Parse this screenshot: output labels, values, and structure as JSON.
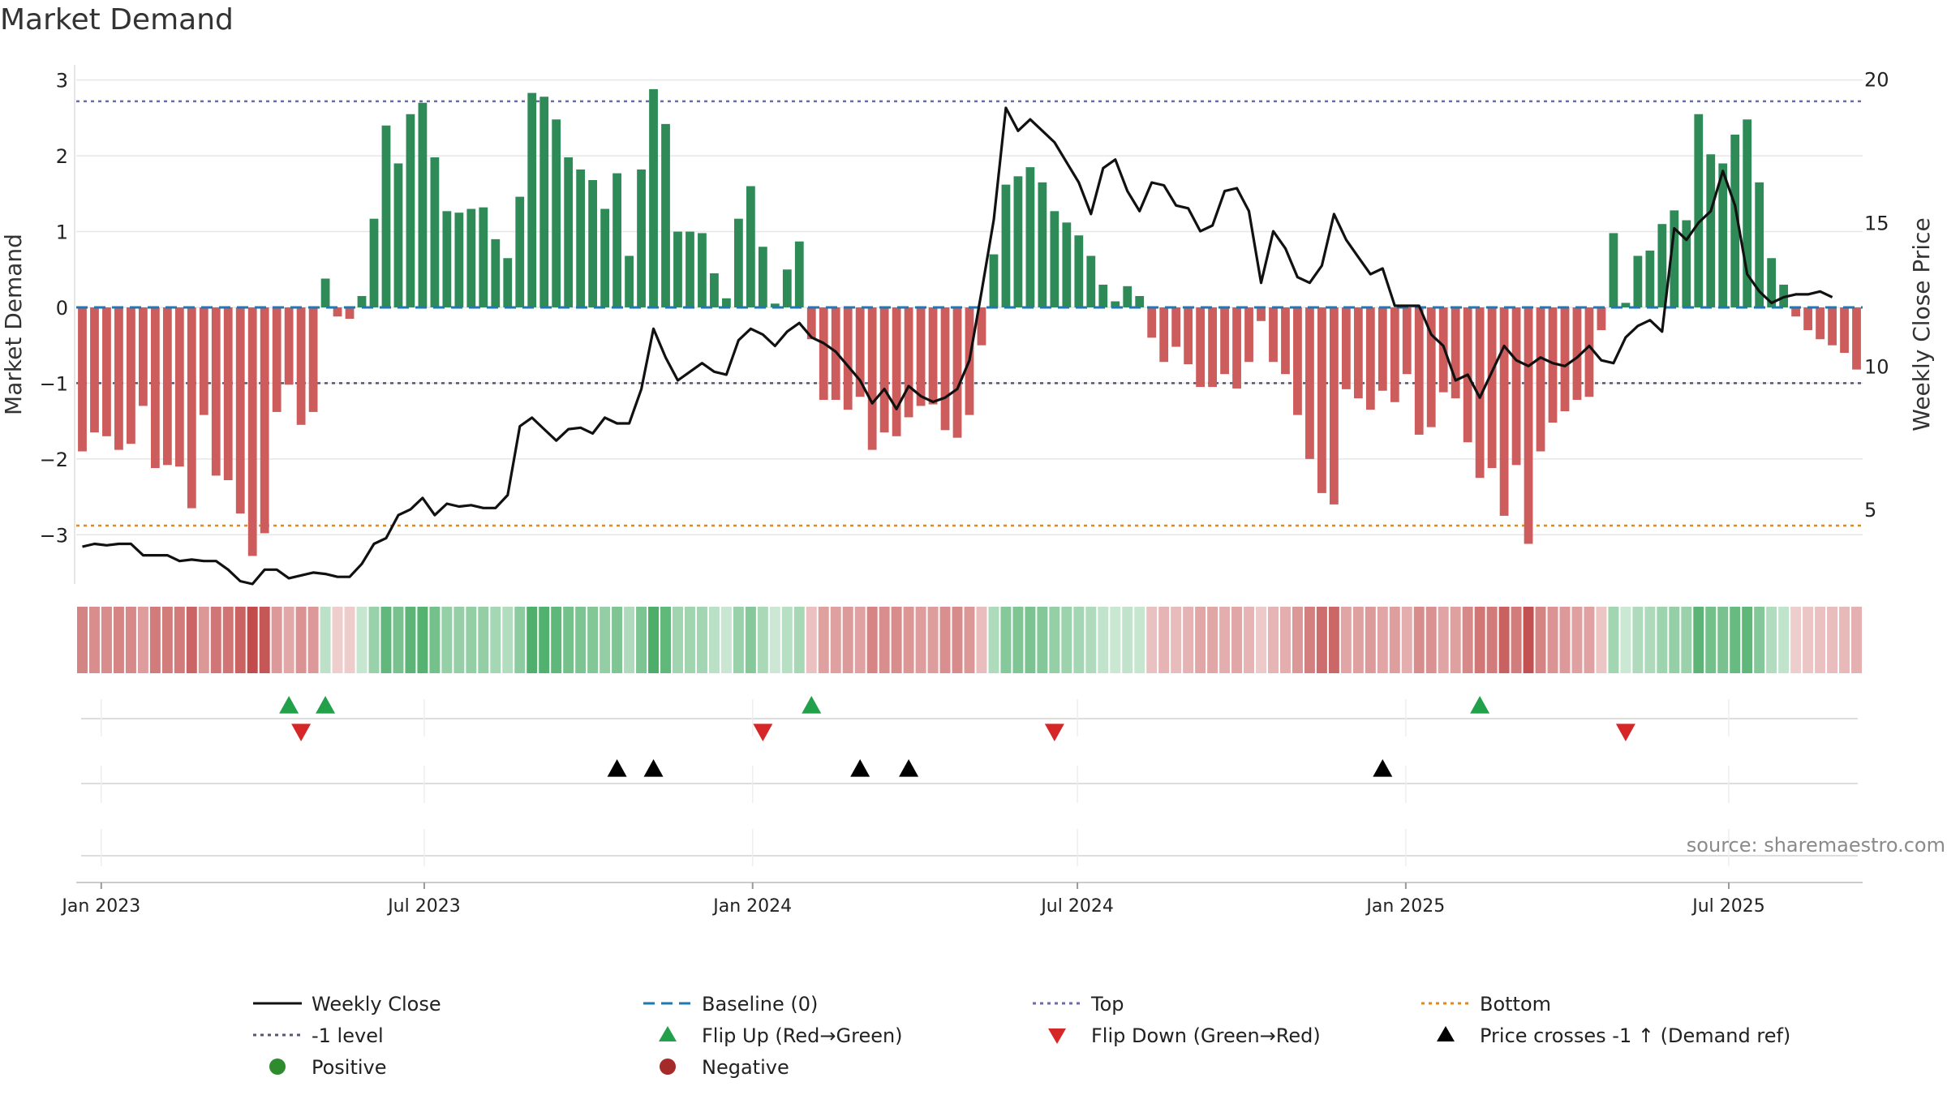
{
  "title": "Market Demand",
  "source_note": "source: sharemaestro.com",
  "colors": {
    "positive": "#2e8b57",
    "negative": "#cd5c5c",
    "price": "#111111",
    "baseline": "#1f77b4",
    "top": "#6a6aaf",
    "minus1": "#555577",
    "bottom": "#e08a1e",
    "flip_up": "#22a04a",
    "flip_down": "#d62728",
    "cross": "#000000",
    "grid": "#e6e6e6"
  },
  "chart_data": {
    "type": "bar",
    "title": "Market Demand",
    "ylabel_left": "Market Demand",
    "ylabel_right": "Weekly Close Price",
    "ylim_left": [
      -3.65,
      3.2
    ],
    "ylim_right": [
      2.4,
      20.5
    ],
    "yticks_left": [
      3,
      2,
      1,
      0,
      -1,
      -2,
      -3
    ],
    "ytick_labels_left": [
      "3",
      "2",
      "1",
      "0",
      "−1",
      "−2",
      "−3"
    ],
    "yticks_right": [
      20,
      15,
      10,
      5
    ],
    "ytick_labels_right": [
      "20",
      "15",
      "10",
      "5"
    ],
    "reference_lines": {
      "top": 2.72,
      "minus1": -1.0,
      "bottom": -2.88,
      "baseline": 0
    },
    "x_start_date": "2022-12-18",
    "x_end_date": "2025-09-14",
    "x_ticks": [
      {
        "label": "Jan 2023",
        "date": "2023-01-01"
      },
      {
        "label": "Jul 2023",
        "date": "2023-07-01"
      },
      {
        "label": "Jan 2024",
        "date": "2024-01-01"
      },
      {
        "label": "Jul 2024",
        "date": "2024-07-01"
      },
      {
        "label": "Jan 2025",
        "date": "2025-01-01"
      },
      {
        "label": "Jul 2025",
        "date": "2025-07-01"
      }
    ],
    "demand": [
      -1.9,
      -1.65,
      -1.7,
      -1.88,
      -1.8,
      -1.3,
      -2.12,
      -2.08,
      -2.1,
      -2.65,
      -1.42,
      -2.22,
      -2.28,
      -2.72,
      -3.28,
      -2.98,
      -1.38,
      -1.02,
      -1.55,
      -1.38,
      0.38,
      -0.12,
      -0.15,
      0.15,
      1.17,
      2.4,
      1.9,
      2.55,
      2.7,
      1.98,
      1.27,
      1.25,
      1.3,
      1.32,
      0.9,
      0.65,
      1.46,
      2.83,
      2.78,
      2.48,
      1.98,
      1.82,
      1.68,
      1.3,
      1.77,
      0.68,
      1.82,
      2.88,
      2.42,
      1.0,
      1.0,
      0.98,
      0.45,
      0.12,
      1.17,
      1.6,
      0.8,
      0.05,
      0.5,
      0.87,
      -0.42,
      -1.22,
      -1.22,
      -1.35,
      -1.18,
      -1.88,
      -1.65,
      -1.7,
      -1.45,
      -1.3,
      -1.28,
      -1.62,
      -1.72,
      -1.42,
      -0.5,
      0.7,
      1.62,
      1.73,
      1.85,
      1.65,
      1.27,
      1.12,
      0.95,
      0.68,
      0.3,
      0.08,
      0.28,
      0.15,
      -0.4,
      -0.72,
      -0.52,
      -0.75,
      -1.05,
      -1.05,
      -0.88,
      -1.07,
      -0.72,
      -0.18,
      -0.72,
      -0.88,
      -1.42,
      -2.0,
      -2.45,
      -2.6,
      -1.08,
      -1.2,
      -1.35,
      -1.1,
      -1.25,
      -0.88,
      -1.68,
      -1.58,
      -1.12,
      -1.2,
      -1.78,
      -2.25,
      -2.12,
      -2.75,
      -2.08,
      -3.12,
      -1.9,
      -1.52,
      -1.37,
      -1.22,
      -1.18,
      -0.3,
      0.98,
      0.06,
      0.68,
      0.75,
      1.1,
      1.28,
      1.15,
      2.55,
      2.02,
      1.9,
      2.28,
      2.48,
      1.65,
      0.65,
      0.3,
      -0.12,
      -0.3,
      -0.42,
      -0.5,
      -0.6,
      -0.82
    ],
    "price_points": [
      [
        0,
        3.7
      ],
      [
        1,
        3.8
      ],
      [
        2,
        3.75
      ],
      [
        3,
        3.8
      ],
      [
        4,
        3.8
      ],
      [
        5,
        3.4
      ],
      [
        6,
        3.4
      ],
      [
        7,
        3.4
      ],
      [
        8,
        3.2
      ],
      [
        9,
        3.25
      ],
      [
        10,
        3.2
      ],
      [
        11,
        3.2
      ],
      [
        12,
        2.9
      ],
      [
        13,
        2.5
      ],
      [
        14,
        2.4
      ],
      [
        15,
        2.9
      ],
      [
        16,
        2.9
      ],
      [
        17,
        2.6
      ],
      [
        18,
        2.7
      ],
      [
        19,
        2.8
      ],
      [
        20,
        2.75
      ],
      [
        21,
        2.65
      ],
      [
        22,
        2.65
      ],
      [
        23,
        3.1
      ],
      [
        24,
        3.8
      ],
      [
        25,
        4.0
      ],
      [
        26,
        4.8
      ],
      [
        27,
        5.0
      ],
      [
        28,
        5.4
      ],
      [
        29,
        4.8
      ],
      [
        30,
        5.2
      ],
      [
        31,
        5.1
      ],
      [
        32,
        5.15
      ],
      [
        33,
        5.05
      ],
      [
        34,
        5.05
      ],
      [
        35,
        5.5
      ],
      [
        36,
        7.9
      ],
      [
        37,
        8.2
      ],
      [
        38,
        7.8
      ],
      [
        39,
        7.4
      ],
      [
        40,
        7.8
      ],
      [
        41,
        7.85
      ],
      [
        42,
        7.65
      ],
      [
        43,
        8.2
      ],
      [
        44,
        8.0
      ],
      [
        45,
        8.0
      ],
      [
        46,
        9.2
      ],
      [
        47,
        11.3
      ],
      [
        48,
        10.3
      ],
      [
        49,
        9.5
      ],
      [
        50,
        9.8
      ],
      [
        51,
        10.1
      ],
      [
        52,
        9.8
      ],
      [
        53,
        9.7
      ],
      [
        54,
        10.9
      ],
      [
        55,
        11.3
      ],
      [
        56,
        11.1
      ],
      [
        57,
        10.7
      ],
      [
        58,
        11.2
      ],
      [
        59,
        11.5
      ],
      [
        60,
        11.0
      ],
      [
        61,
        10.8
      ],
      [
        62,
        10.5
      ],
      [
        63,
        10.0
      ],
      [
        64,
        9.5
      ],
      [
        65,
        8.7
      ],
      [
        66,
        9.2
      ],
      [
        67,
        8.5
      ],
      [
        68,
        9.3
      ],
      [
        69,
        8.95
      ],
      [
        70,
        8.75
      ],
      [
        71,
        8.9
      ],
      [
        72,
        9.2
      ],
      [
        73,
        10.2
      ],
      [
        74,
        12.6
      ],
      [
        75,
        15.1
      ],
      [
        76,
        19.0
      ],
      [
        77,
        18.2
      ],
      [
        78,
        18.6
      ],
      [
        79,
        18.2
      ],
      [
        80,
        17.8
      ],
      [
        81,
        17.1
      ],
      [
        82,
        16.4
      ],
      [
        83,
        15.3
      ],
      [
        84,
        16.9
      ],
      [
        85,
        17.2
      ],
      [
        86,
        16.1
      ],
      [
        87,
        15.4
      ],
      [
        88,
        16.4
      ],
      [
        89,
        16.3
      ],
      [
        90,
        15.6
      ],
      [
        91,
        15.5
      ],
      [
        92,
        14.7
      ],
      [
        93,
        14.9
      ],
      [
        94,
        16.1
      ],
      [
        95,
        16.2
      ],
      [
        96,
        15.4
      ],
      [
        97,
        12.9
      ],
      [
        98,
        14.7
      ],
      [
        99,
        14.1
      ],
      [
        100,
        13.1
      ],
      [
        101,
        12.9
      ],
      [
        102,
        13.5
      ],
      [
        103,
        15.3
      ],
      [
        104,
        14.4
      ],
      [
        105,
        13.8
      ],
      [
        106,
        13.2
      ],
      [
        107,
        13.4
      ],
      [
        108,
        12.1
      ],
      [
        109,
        12.1
      ],
      [
        110,
        12.1
      ],
      [
        111,
        11.1
      ],
      [
        112,
        10.7
      ],
      [
        113,
        9.5
      ],
      [
        114,
        9.7
      ],
      [
        115,
        8.9
      ],
      [
        116,
        9.8
      ],
      [
        117,
        10.7
      ],
      [
        118,
        10.2
      ],
      [
        119,
        10.0
      ],
      [
        120,
        10.3
      ],
      [
        121,
        10.1
      ],
      [
        122,
        10.0
      ],
      [
        123,
        10.3
      ],
      [
        124,
        10.7
      ],
      [
        125,
        10.2
      ],
      [
        126,
        10.1
      ],
      [
        127,
        11.0
      ],
      [
        128,
        11.4
      ],
      [
        129,
        11.6
      ],
      [
        130,
        11.2
      ],
      [
        131,
        14.8
      ],
      [
        132,
        14.4
      ],
      [
        133,
        15.0
      ],
      [
        134,
        15.4
      ],
      [
        135,
        16.8
      ],
      [
        136,
        15.6
      ],
      [
        137,
        13.2
      ],
      [
        138,
        12.6
      ],
      [
        139,
        12.2
      ],
      [
        140,
        12.4
      ],
      [
        141,
        12.5
      ],
      [
        142,
        12.5
      ],
      [
        143,
        12.6
      ],
      [
        144,
        12.4
      ]
    ],
    "flip_up_weeks": [
      17,
      20,
      60,
      115
    ],
    "flip_down_weeks": [
      18,
      56,
      80,
      127
    ],
    "cross_weeks": [
      44,
      47,
      64,
      68,
      107
    ],
    "legend": [
      {
        "label": "Weekly Close",
        "kind": "line-solid",
        "color": "#111111"
      },
      {
        "label": "Baseline (0)",
        "kind": "line-dash",
        "color": "#1f77b4"
      },
      {
        "label": "Top",
        "kind": "line-dot",
        "color": "#6a6aaf"
      },
      {
        "label": "Bottom",
        "kind": "line-dot",
        "color": "#e08a1e"
      },
      {
        "label": "-1 level",
        "kind": "line-dot",
        "color": "#555577"
      },
      {
        "label": "Flip Up (Red→Green)",
        "kind": "tri-up",
        "color": "#22a04a"
      },
      {
        "label": "Flip Down (Green→Red)",
        "kind": "tri-down",
        "color": "#d62728"
      },
      {
        "label": "Price crosses -1 ↑ (Demand ref)",
        "kind": "tri-up",
        "color": "#000000"
      },
      {
        "label": "Positive",
        "kind": "dot",
        "color": "#2e8b2e"
      },
      {
        "label": "Negative",
        "kind": "dot",
        "color": "#a52a2a"
      }
    ]
  }
}
